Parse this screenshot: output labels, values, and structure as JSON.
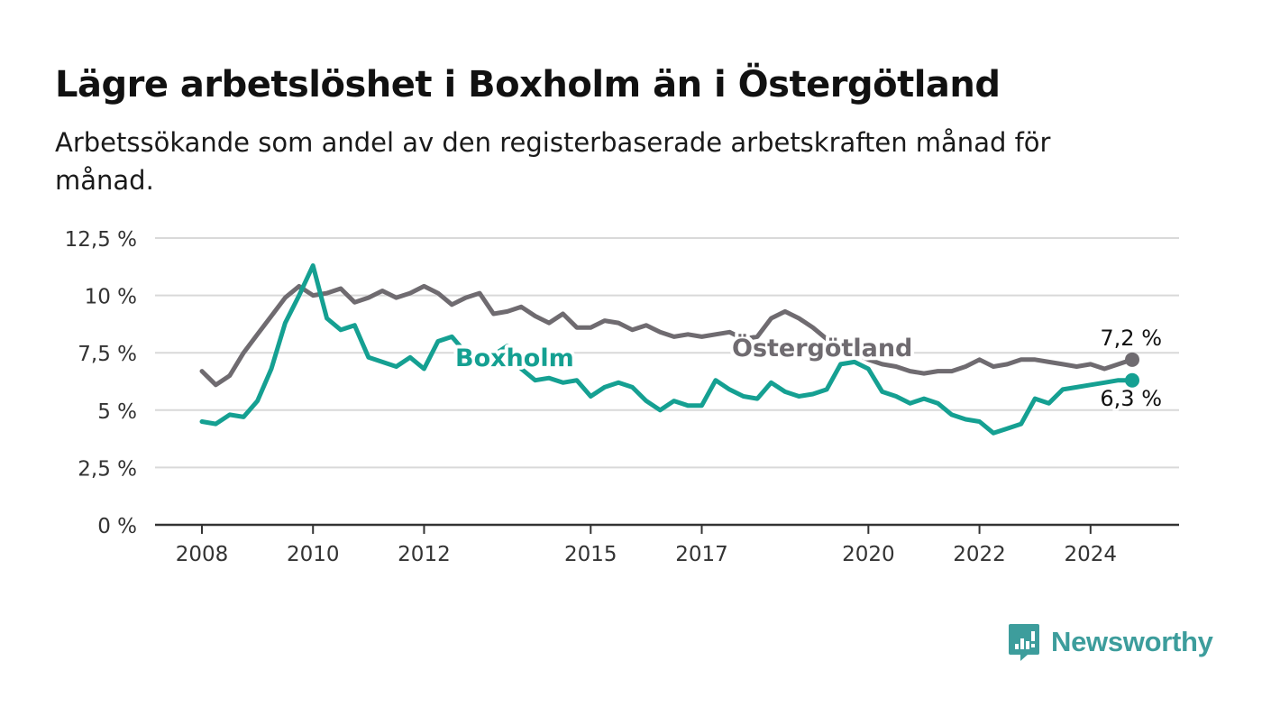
{
  "title": "Lägre arbetslöshet i Boxholm än i Östergötland",
  "subtitle": "Arbetssökande som andel av den registerbaserade arbetskraften månad för månad.",
  "brand": {
    "name": "Newsworthy",
    "color": "#3d9d9c",
    "icon": "newsworthy-logo-icon"
  },
  "chart_data": {
    "type": "line",
    "ylim": [
      0,
      12.5
    ],
    "yticks": [
      0,
      2.5,
      5,
      7.5,
      10,
      12.5
    ],
    "ytick_labels": [
      "0 %",
      "2,5 %",
      "5 %",
      "7,5 %",
      "10 %",
      "12,5 %"
    ],
    "xticks": [
      2008,
      2010,
      2012,
      2015,
      2017,
      2020,
      2022,
      2024
    ],
    "xtick_labels": [
      "2008",
      "2010",
      "2012",
      "2015",
      "2017",
      "2020",
      "2022",
      "2024"
    ],
    "grid": true,
    "series": [
      {
        "name": "Östergötland",
        "color": "#6f6b70",
        "end_label": "7,2 %",
        "x": [
          2008.0,
          2008.25,
          2008.5,
          2008.75,
          2009.0,
          2009.25,
          2009.5,
          2009.75,
          2010.0,
          2010.25,
          2010.5,
          2010.75,
          2011.0,
          2011.25,
          2011.5,
          2011.75,
          2012.0,
          2012.25,
          2012.5,
          2012.75,
          2013.0,
          2013.25,
          2013.5,
          2013.75,
          2014.0,
          2014.25,
          2014.5,
          2014.75,
          2015.0,
          2015.25,
          2015.5,
          2015.75,
          2016.0,
          2016.25,
          2016.5,
          2016.75,
          2017.0,
          2017.25,
          2017.5,
          2017.75,
          2018.0,
          2018.25,
          2018.5,
          2018.75,
          2019.0,
          2019.25,
          2019.5,
          2019.75,
          2020.0,
          2020.25,
          2020.5,
          2020.75,
          2021.0,
          2021.25,
          2021.5,
          2021.75,
          2022.0,
          2022.25,
          2022.5,
          2022.75,
          2023.0,
          2023.25,
          2023.5,
          2023.75,
          2024.0,
          2024.25,
          2024.5,
          2024.75
        ],
        "values": [
          6.7,
          6.1,
          6.5,
          7.5,
          8.3,
          9.1,
          9.9,
          10.4,
          10.0,
          10.1,
          10.3,
          9.7,
          9.9,
          10.2,
          9.9,
          10.1,
          10.4,
          10.1,
          9.6,
          9.9,
          10.1,
          9.2,
          9.3,
          9.5,
          9.1,
          8.8,
          9.2,
          8.6,
          8.6,
          8.9,
          8.8,
          8.5,
          8.7,
          8.4,
          8.2,
          8.3,
          8.2,
          8.3,
          8.4,
          8.1,
          8.2,
          9.0,
          9.3,
          9.0,
          8.6,
          8.1,
          7.8,
          7.5,
          7.2,
          7.0,
          6.9,
          6.7,
          6.6,
          6.7,
          6.7,
          6.9,
          7.2,
          6.9,
          7.0,
          7.2,
          7.2,
          7.1,
          7.0,
          6.9,
          7.0,
          6.8,
          7.0,
          7.2
        ]
      },
      {
        "name": "Boxholm",
        "color": "#15a092",
        "end_label": "6,3 %",
        "x": [
          2008.0,
          2008.25,
          2008.5,
          2008.75,
          2009.0,
          2009.25,
          2009.5,
          2009.75,
          2010.0,
          2010.25,
          2010.5,
          2010.75,
          2011.0,
          2011.25,
          2011.5,
          2011.75,
          2012.0,
          2012.25,
          2012.5,
          2012.75,
          2013.0,
          2013.25,
          2013.5,
          2013.75,
          2014.0,
          2014.25,
          2014.5,
          2014.75,
          2015.0,
          2015.25,
          2015.5,
          2015.75,
          2016.0,
          2016.25,
          2016.5,
          2016.75,
          2017.0,
          2017.25,
          2017.5,
          2017.75,
          2018.0,
          2018.25,
          2018.5,
          2018.75,
          2019.0,
          2019.25,
          2019.5,
          2019.75,
          2020.0,
          2020.25,
          2020.5,
          2020.75,
          2021.0,
          2021.25,
          2021.5,
          2021.75,
          2022.0,
          2022.25,
          2022.5,
          2022.75,
          2023.0,
          2023.25,
          2023.5,
          2023.75,
          2024.0,
          2024.25,
          2024.5,
          2024.75
        ],
        "values": [
          4.5,
          4.4,
          4.8,
          4.7,
          5.4,
          6.8,
          8.8,
          10.0,
          11.3,
          9.0,
          8.5,
          8.7,
          7.3,
          7.1,
          6.9,
          7.3,
          6.8,
          8.0,
          8.2,
          7.5,
          7.0,
          7.4,
          7.8,
          6.8,
          6.3,
          6.4,
          6.2,
          6.3,
          5.6,
          6.0,
          6.2,
          6.0,
          5.4,
          5.0,
          5.4,
          5.2,
          5.2,
          6.3,
          5.9,
          5.6,
          5.5,
          6.2,
          5.8,
          5.6,
          5.7,
          5.9,
          7.0,
          7.1,
          6.8,
          5.8,
          5.6,
          5.3,
          5.5,
          5.3,
          4.8,
          4.6,
          4.5,
          4.0,
          4.2,
          4.4,
          5.5,
          5.3,
          5.9,
          6.0,
          6.1,
          6.2,
          6.3,
          6.3
        ]
      }
    ],
    "annotations": [
      "Boxholm",
      "Östergötland"
    ]
  }
}
